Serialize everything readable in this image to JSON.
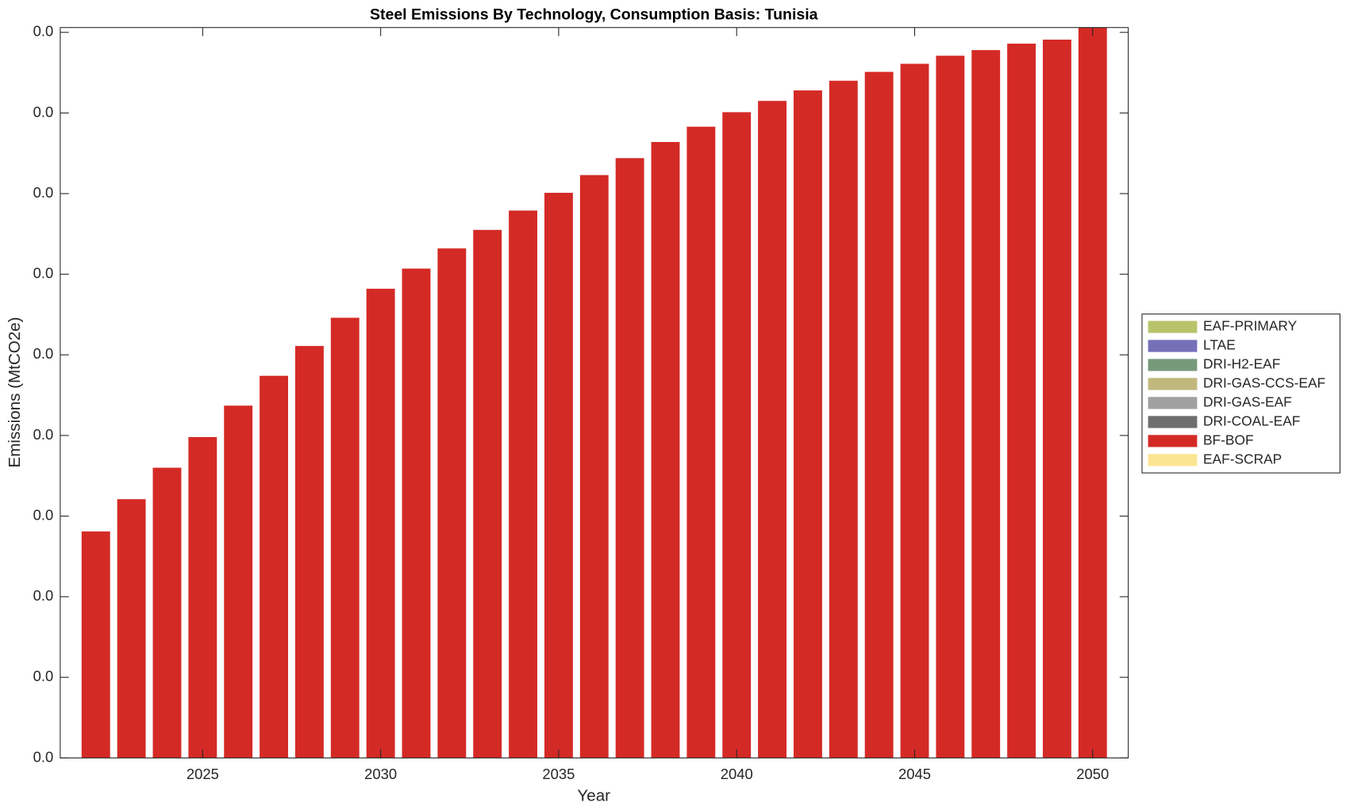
{
  "chart_data": {
    "type": "stacked-bar",
    "title": "Steel Emissions By Technology, Consumption Basis: Tunisia",
    "x_label": "Year",
    "y_label": "Emissions (MtCO2e)",
    "x": [
      2022,
      2023,
      2024,
      2025,
      2026,
      2027,
      2028,
      2029,
      2030,
      2031,
      2032,
      2033,
      2034,
      2035,
      2036,
      2037,
      2038,
      2039,
      2040,
      2041,
      2042,
      2043,
      2044,
      2045,
      2046,
      2047,
      2048,
      2049,
      2050
    ],
    "xlim": [
      2021,
      2051
    ],
    "xticks": [
      2025,
      2030,
      2035,
      2040,
      2045,
      2050
    ],
    "ylim": [
      0,
      0.00906
    ],
    "yticks": [
      {
        "value": 0,
        "label": "0.0"
      },
      {
        "value": 0.001,
        "label": "0.0"
      },
      {
        "value": 0.002,
        "label": "0.0"
      },
      {
        "value": 0.003,
        "label": "0.0"
      },
      {
        "value": 0.004,
        "label": "0.0"
      },
      {
        "value": 0.005,
        "label": "0.0"
      },
      {
        "value": 0.006,
        "label": "0.0"
      },
      {
        "value": 0.007,
        "label": "0.0"
      },
      {
        "value": 0.008,
        "label": "0.0"
      },
      {
        "value": 0.009,
        "label": "0.0"
      }
    ],
    "legend": "right",
    "series": [
      {
        "name": "EAF-PRIMARY",
        "color": "#b8c36a",
        "values": [
          0,
          0,
          0,
          0,
          0,
          0,
          0,
          0,
          0,
          0,
          0,
          0,
          0,
          0,
          0,
          0,
          0,
          0,
          0,
          0,
          0,
          0,
          0,
          0,
          0,
          0,
          0,
          0,
          0
        ]
      },
      {
        "name": "LTAE",
        "color": "#7570b8",
        "values": [
          0,
          0,
          0,
          0,
          0,
          0,
          0,
          0,
          0,
          0,
          0,
          0,
          0,
          0,
          0,
          0,
          0,
          0,
          0,
          0,
          0,
          0,
          0,
          0,
          0,
          0,
          0,
          0,
          0
        ]
      },
      {
        "name": "DRI-H2-EAF",
        "color": "#77997b",
        "values": [
          0,
          0,
          0,
          0,
          0,
          0,
          0,
          0,
          0,
          0,
          0,
          0,
          0,
          0,
          0,
          0,
          0,
          0,
          0,
          0,
          0,
          0,
          0,
          0,
          0,
          0,
          0,
          0,
          0
        ]
      },
      {
        "name": "DRI-GAS-CCS-EAF",
        "color": "#c0b87c",
        "values": [
          0,
          0,
          0,
          0,
          0,
          0,
          0,
          0,
          0,
          0,
          0,
          0,
          0,
          0,
          0,
          0,
          0,
          0,
          0,
          0,
          0,
          0,
          0,
          0,
          0,
          0,
          0,
          0,
          0
        ]
      },
      {
        "name": "DRI-GAS-EAF",
        "color": "#a0a0a0",
        "values": [
          0,
          0,
          0,
          0,
          0,
          0,
          0,
          0,
          0,
          0,
          0,
          0,
          0,
          0,
          0,
          0,
          0,
          0,
          0,
          0,
          0,
          0,
          0,
          0,
          0,
          0,
          0,
          0,
          0
        ]
      },
      {
        "name": "DRI-COAL-EAF",
        "color": "#6e6e6e",
        "values": [
          0,
          0,
          0,
          0,
          0,
          0,
          0,
          0,
          0,
          0,
          0,
          0,
          0,
          0,
          0,
          0,
          0,
          0,
          0,
          0,
          0,
          0,
          0,
          0,
          0,
          0,
          0,
          0,
          0
        ]
      },
      {
        "name": "BF-BOF",
        "color": "#d42a26",
        "values": [
          0.00281,
          0.00321,
          0.0036,
          0.00398,
          0.00437,
          0.00474,
          0.00511,
          0.00546,
          0.00582,
          0.00607,
          0.00632,
          0.00655,
          0.00679,
          0.00701,
          0.00723,
          0.00744,
          0.00764,
          0.00783,
          0.00801,
          0.00815,
          0.00828,
          0.0084,
          0.00851,
          0.00861,
          0.00871,
          0.00878,
          0.00886,
          0.00891,
          0.00906
        ]
      },
      {
        "name": "EAF-SCRAP",
        "color": "#fce592",
        "values": [
          0,
          0,
          0,
          0,
          0,
          0,
          0,
          0,
          0,
          0,
          0,
          0,
          0,
          0,
          0,
          0,
          0,
          0,
          0,
          0,
          0,
          0,
          0,
          0,
          0,
          0,
          0,
          0,
          0
        ]
      }
    ]
  }
}
